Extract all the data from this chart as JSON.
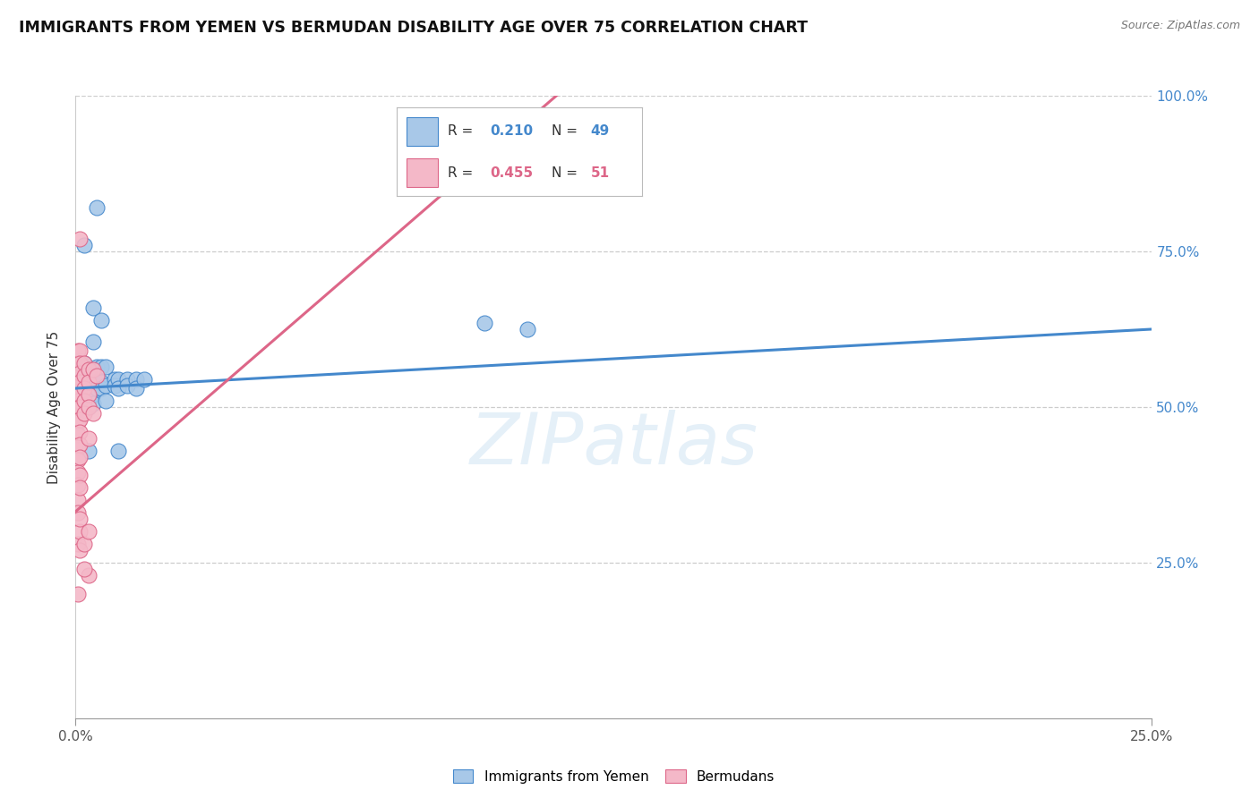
{
  "title": "IMMIGRANTS FROM YEMEN VS BERMUDAN DISABILITY AGE OVER 75 CORRELATION CHART",
  "source": "Source: ZipAtlas.com",
  "ylabel_label": "Disability Age Over 75",
  "xlim": [
    0.0,
    0.25
  ],
  "ylim": [
    0.0,
    1.0
  ],
  "color_blue": "#a8c8e8",
  "color_pink": "#f4b8c8",
  "line_blue": "#4488cc",
  "line_pink": "#dd6688",
  "background": "#ffffff",
  "watermark": "ZIPatlas",
  "blue_points": [
    [
      0.001,
      0.555
    ],
    [
      0.001,
      0.575
    ],
    [
      0.001,
      0.54
    ],
    [
      0.001,
      0.53
    ],
    [
      0.001,
      0.52
    ],
    [
      0.002,
      0.57
    ],
    [
      0.002,
      0.555
    ],
    [
      0.002,
      0.54
    ],
    [
      0.002,
      0.53
    ],
    [
      0.002,
      0.525
    ],
    [
      0.002,
      0.52
    ],
    [
      0.002,
      0.51
    ],
    [
      0.003,
      0.56
    ],
    [
      0.003,
      0.555
    ],
    [
      0.003,
      0.545
    ],
    [
      0.003,
      0.535
    ],
    [
      0.003,
      0.51
    ],
    [
      0.003,
      0.5
    ],
    [
      0.004,
      0.66
    ],
    [
      0.004,
      0.605
    ],
    [
      0.004,
      0.545
    ],
    [
      0.004,
      0.535
    ],
    [
      0.004,
      0.52
    ],
    [
      0.004,
      0.505
    ],
    [
      0.005,
      0.565
    ],
    [
      0.005,
      0.555
    ],
    [
      0.005,
      0.54
    ],
    [
      0.005,
      0.53
    ],
    [
      0.006,
      0.64
    ],
    [
      0.006,
      0.565
    ],
    [
      0.006,
      0.54
    ],
    [
      0.006,
      0.53
    ],
    [
      0.007,
      0.565
    ],
    [
      0.007,
      0.535
    ],
    [
      0.007,
      0.51
    ],
    [
      0.009,
      0.545
    ],
    [
      0.009,
      0.535
    ],
    [
      0.01,
      0.545
    ],
    [
      0.01,
      0.53
    ],
    [
      0.012,
      0.545
    ],
    [
      0.012,
      0.535
    ],
    [
      0.014,
      0.545
    ],
    [
      0.014,
      0.53
    ],
    [
      0.016,
      0.545
    ],
    [
      0.005,
      0.82
    ],
    [
      0.003,
      0.43
    ],
    [
      0.01,
      0.43
    ],
    [
      0.095,
      0.635
    ],
    [
      0.105,
      0.625
    ],
    [
      0.002,
      0.76
    ]
  ],
  "pink_points": [
    [
      0.0005,
      0.59
    ],
    [
      0.0005,
      0.57
    ],
    [
      0.0005,
      0.55
    ],
    [
      0.0005,
      0.54
    ],
    [
      0.0005,
      0.525
    ],
    [
      0.0005,
      0.51
    ],
    [
      0.0005,
      0.495
    ],
    [
      0.0005,
      0.475
    ],
    [
      0.0005,
      0.455
    ],
    [
      0.0005,
      0.435
    ],
    [
      0.0005,
      0.415
    ],
    [
      0.0005,
      0.395
    ],
    [
      0.0005,
      0.375
    ],
    [
      0.0005,
      0.35
    ],
    [
      0.0005,
      0.33
    ],
    [
      0.0005,
      0.28
    ],
    [
      0.0005,
      0.2
    ],
    [
      0.001,
      0.59
    ],
    [
      0.001,
      0.57
    ],
    [
      0.001,
      0.555
    ],
    [
      0.001,
      0.54
    ],
    [
      0.001,
      0.52
    ],
    [
      0.001,
      0.5
    ],
    [
      0.001,
      0.48
    ],
    [
      0.001,
      0.46
    ],
    [
      0.001,
      0.44
    ],
    [
      0.001,
      0.42
    ],
    [
      0.001,
      0.39
    ],
    [
      0.001,
      0.37
    ],
    [
      0.001,
      0.3
    ],
    [
      0.001,
      0.27
    ],
    [
      0.001,
      0.77
    ],
    [
      0.002,
      0.57
    ],
    [
      0.002,
      0.55
    ],
    [
      0.002,
      0.53
    ],
    [
      0.002,
      0.51
    ],
    [
      0.002,
      0.49
    ],
    [
      0.002,
      0.28
    ],
    [
      0.003,
      0.56
    ],
    [
      0.003,
      0.54
    ],
    [
      0.003,
      0.52
    ],
    [
      0.003,
      0.5
    ],
    [
      0.003,
      0.45
    ],
    [
      0.003,
      0.23
    ],
    [
      0.004,
      0.56
    ],
    [
      0.004,
      0.49
    ],
    [
      0.005,
      0.55
    ],
    [
      0.002,
      0.24
    ],
    [
      0.001,
      0.32
    ],
    [
      0.003,
      0.3
    ]
  ],
  "blue_line_x": [
    0.0,
    0.25
  ],
  "blue_line_y": [
    0.53,
    0.625
  ],
  "pink_line_x": [
    -0.002,
    0.115
  ],
  "pink_line_y": [
    0.32,
    1.02
  ]
}
